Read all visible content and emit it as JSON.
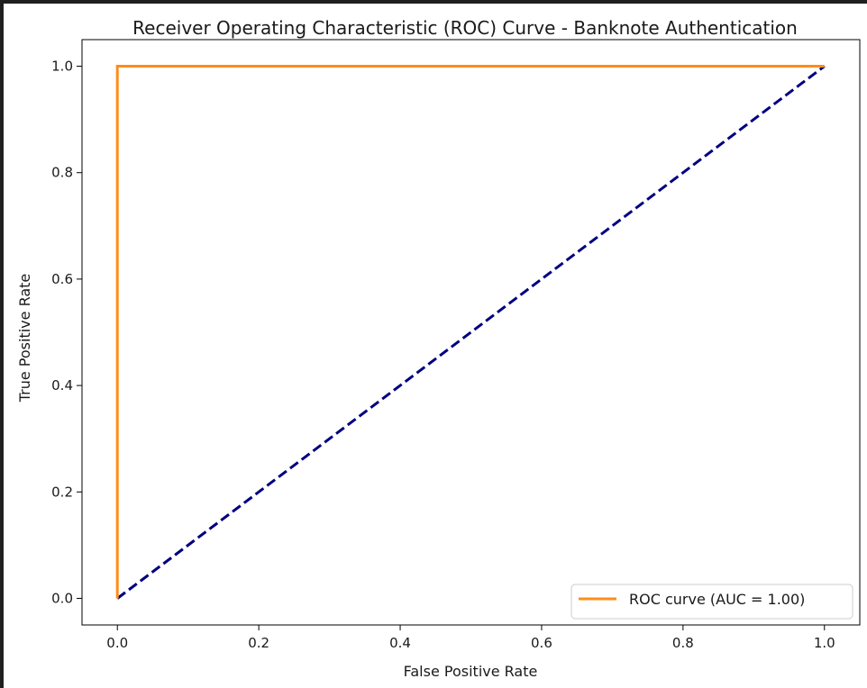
{
  "chart_data": {
    "type": "line",
    "title": "Receiver Operating Characteristic (ROC) Curve - Banknote Authentication",
    "xlabel": "False Positive Rate",
    "ylabel": "True Positive Rate",
    "xlim": [
      -0.05,
      1.05
    ],
    "ylim": [
      -0.05,
      1.05
    ],
    "xticks": [
      0.0,
      0.2,
      0.4,
      0.6,
      0.8,
      1.0
    ],
    "yticks": [
      0.0,
      0.2,
      0.4,
      0.6,
      0.8,
      1.0
    ],
    "xtick_labels": [
      "0.0",
      "0.2",
      "0.4",
      "0.6",
      "0.8",
      "1.0"
    ],
    "ytick_labels": [
      "0.0",
      "0.2",
      "0.4",
      "0.6",
      "0.8",
      "1.0"
    ],
    "grid": false,
    "legend_position": "lower-right",
    "series": [
      {
        "name": "ROC curve (AUC = 1.00)",
        "color": "#ff8c1a",
        "style": "solid",
        "x": [
          0.0,
          0.0,
          1.0
        ],
        "y": [
          0.0,
          1.0,
          1.0
        ]
      },
      {
        "color": "#000080",
        "style": "dashed",
        "x": [
          0.0,
          1.0
        ],
        "y": [
          0.0,
          1.0
        ]
      }
    ]
  }
}
